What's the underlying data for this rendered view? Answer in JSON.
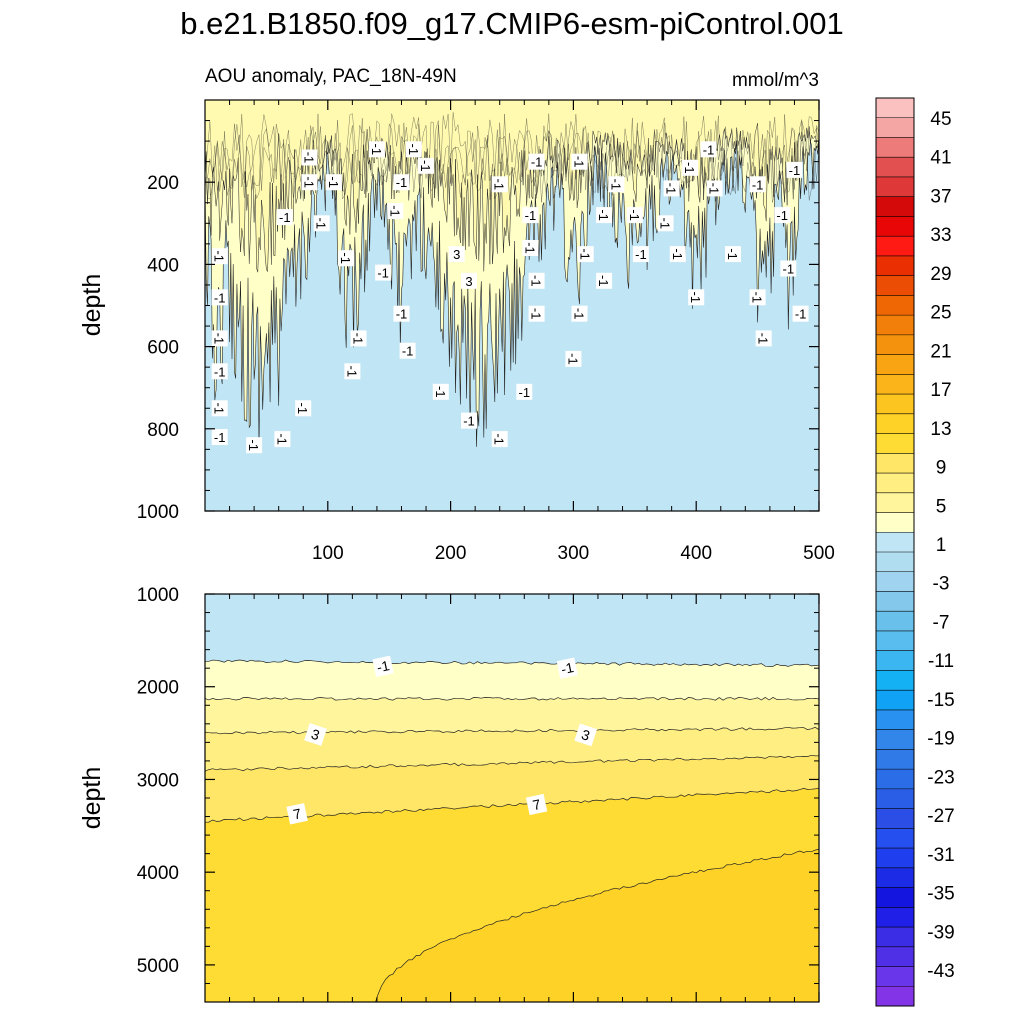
{
  "title": "b.e21.B1850.f09_g17.CMIP6-esm-piControl.001",
  "colors": {
    "pos_levels": [
      "#ffffc8",
      "#fff59d",
      "#ffee82",
      "#ffe666",
      "#ffdc33",
      "#ffd228",
      "#fdc51f",
      "#fbb51a",
      "#f8a413",
      "#f5920d",
      "#f27f09",
      "#ef6605",
      "#eb4d04",
      "#ea2f03",
      "#ff1a14",
      "#e90606",
      "#d40a0a",
      "#de3838",
      "#e2514f",
      "#ec7b79",
      "#f4a6a4",
      "#fac1c0"
    ],
    "neg_levels": [
      "#c0e5f5",
      "#b1ddf1",
      "#9fd3ef",
      "#84c9ec",
      "#69c0eb",
      "#59bdf0",
      "#3cb6f0",
      "#14b1f5",
      "#10a2f5",
      "#2992f0",
      "#3386e9",
      "#2f7ae6",
      "#2b6de6",
      "#2a5ee6",
      "#2a4ee6",
      "#254fee",
      "#1f3fee",
      "#1b2be6",
      "#1515e0",
      "#1f1fe8",
      "#3b2ce6",
      "#5030e6",
      "#6a36e9",
      "#8234e6"
    ],
    "line": "#222222"
  },
  "chart_data": [
    {
      "type": "contour",
      "panel": "upper",
      "title": "AOU anomaly, PAC_18N-49N",
      "units": "mmol/m^3",
      "xlabel": "",
      "ylabel": "depth",
      "xlim": [
        0,
        500
      ],
      "ylim": [
        0,
        1000
      ],
      "y_reversed": true,
      "xticks": [
        100,
        200,
        300,
        400,
        500
      ],
      "xticklabels": [
        "100",
        "200",
        "300",
        "400",
        "500"
      ],
      "yticks": [
        200,
        400,
        600,
        800,
        1000
      ],
      "yticklabels": [
        "200",
        "400",
        "600",
        "800",
        "1000"
      ],
      "contour_labels": [
        {
          "text": "-1",
          "x": 140,
          "y": 120
        },
        {
          "text": "-1",
          "x": 170,
          "y": 120
        },
        {
          "text": "-1",
          "x": 410,
          "y": 120
        },
        {
          "text": "-1",
          "x": 85,
          "y": 140
        },
        {
          "text": "-1",
          "x": 305,
          "y": 150
        },
        {
          "text": "-1",
          "x": 270,
          "y": 150
        },
        {
          "text": "-1",
          "x": 180,
          "y": 160
        },
        {
          "text": "-1",
          "x": 395,
          "y": 165
        },
        {
          "text": "-1",
          "x": 480,
          "y": 170
        },
        {
          "text": "-1",
          "x": 85,
          "y": 200
        },
        {
          "text": "-1",
          "x": 105,
          "y": 200
        },
        {
          "text": "-1",
          "x": 160,
          "y": 200
        },
        {
          "text": "-1",
          "x": 240,
          "y": 205
        },
        {
          "text": "-1",
          "x": 335,
          "y": 205
        },
        {
          "text": "-1",
          "x": 450,
          "y": 205
        },
        {
          "text": "-1",
          "x": 380,
          "y": 215
        },
        {
          "text": "-1",
          "x": 415,
          "y": 215
        },
        {
          "text": "-1",
          "x": 65,
          "y": 285
        },
        {
          "text": "-1",
          "x": 95,
          "y": 300
        },
        {
          "text": "-1",
          "x": 155,
          "y": 270
        },
        {
          "text": "-1",
          "x": 265,
          "y": 280
        },
        {
          "text": "-1",
          "x": 325,
          "y": 280
        },
        {
          "text": "-1",
          "x": 350,
          "y": 280
        },
        {
          "text": "-1",
          "x": 470,
          "y": 280
        },
        {
          "text": "-1",
          "x": 375,
          "y": 300
        },
        {
          "text": "3",
          "x": 205,
          "y": 375
        },
        {
          "text": "3",
          "x": 215,
          "y": 440
        },
        {
          "text": "-1",
          "x": 12,
          "y": 380
        },
        {
          "text": "-1",
          "x": 115,
          "y": 385
        },
        {
          "text": "-1",
          "x": 145,
          "y": 420
        },
        {
          "text": "-1",
          "x": 265,
          "y": 360
        },
        {
          "text": "-1",
          "x": 310,
          "y": 375
        },
        {
          "text": "-1",
          "x": 355,
          "y": 375
        },
        {
          "text": "-1",
          "x": 385,
          "y": 375
        },
        {
          "text": "-1",
          "x": 430,
          "y": 375
        },
        {
          "text": "-1",
          "x": 475,
          "y": 410
        },
        {
          "text": "-1",
          "x": 270,
          "y": 440
        },
        {
          "text": "-1",
          "x": 325,
          "y": 440
        },
        {
          "text": "-1",
          "x": 12,
          "y": 480
        },
        {
          "text": "-1",
          "x": 400,
          "y": 480
        },
        {
          "text": "-1",
          "x": 450,
          "y": 480
        },
        {
          "text": "-1",
          "x": 160,
          "y": 520
        },
        {
          "text": "-1",
          "x": 270,
          "y": 520
        },
        {
          "text": "-1",
          "x": 305,
          "y": 520
        },
        {
          "text": "-1",
          "x": 485,
          "y": 520
        },
        {
          "text": "-1",
          "x": 12,
          "y": 580
        },
        {
          "text": "-1",
          "x": 125,
          "y": 580
        },
        {
          "text": "-1",
          "x": 165,
          "y": 610
        },
        {
          "text": "-1",
          "x": 455,
          "y": 580
        },
        {
          "text": "-1",
          "x": 300,
          "y": 630
        },
        {
          "text": "-1",
          "x": 12,
          "y": 660
        },
        {
          "text": "-1",
          "x": 120,
          "y": 660
        },
        {
          "text": "-1",
          "x": 192,
          "y": 710
        },
        {
          "text": "-1",
          "x": 260,
          "y": 710
        },
        {
          "text": "-1",
          "x": 12,
          "y": 750
        },
        {
          "text": "-1",
          "x": 80,
          "y": 750
        },
        {
          "text": "-1",
          "x": 12,
          "y": 820
        },
        {
          "text": "-1",
          "x": 40,
          "y": 840
        },
        {
          "text": "-1",
          "x": 63,
          "y": 825
        },
        {
          "text": "-1",
          "x": 215,
          "y": 780
        },
        {
          "text": "-1",
          "x": 240,
          "y": 825
        }
      ]
    },
    {
      "type": "contour",
      "panel": "lower",
      "title": "",
      "xlabel": "",
      "ylabel": "depth",
      "xlim": [
        0,
        500
      ],
      "ylim": [
        1000,
        5400
      ],
      "y_reversed": true,
      "yticks": [
        1000,
        2000,
        3000,
        4000,
        5000
      ],
      "yticklabels": [
        "1000",
        "2000",
        "3000",
        "4000",
        "5000"
      ],
      "contour_lines": [
        {
          "level": -1,
          "depth_at_x0": 1720,
          "depth_at_x500": 1770
        },
        {
          "level": 1,
          "depth_at_x0": 2130,
          "depth_at_x500": 2130
        },
        {
          "level": 3,
          "depth_at_x0": 2500,
          "depth_at_x500": 2450
        },
        {
          "level": 5,
          "depth_at_x0": 2900,
          "depth_at_x500": 2750
        },
        {
          "level": 7,
          "depth_at_x0": 3450,
          "depth_at_x500": 3100
        },
        {
          "level": 9,
          "depth_at_x140": 5400,
          "depth_at_x500": 3750
        }
      ],
      "contour_labels": [
        {
          "text": "-1",
          "x": 145,
          "y": 1780
        },
        {
          "text": "-1",
          "x": 295,
          "y": 1800
        },
        {
          "text": "3",
          "x": 90,
          "y": 2515
        },
        {
          "text": "3",
          "x": 310,
          "y": 2520
        },
        {
          "text": "7",
          "x": 75,
          "y": 3370
        },
        {
          "text": "7",
          "x": 270,
          "y": 3270
        }
      ]
    }
  ],
  "colorbar": {
    "labels": [
      "45",
      "41",
      "37",
      "33",
      "29",
      "25",
      "21",
      "17",
      "13",
      "9",
      "5",
      "1",
      "-3",
      "-7",
      "-11",
      "-15",
      "-19",
      "-23",
      "-27",
      "-31",
      "-35",
      "-39",
      "-43"
    ]
  }
}
